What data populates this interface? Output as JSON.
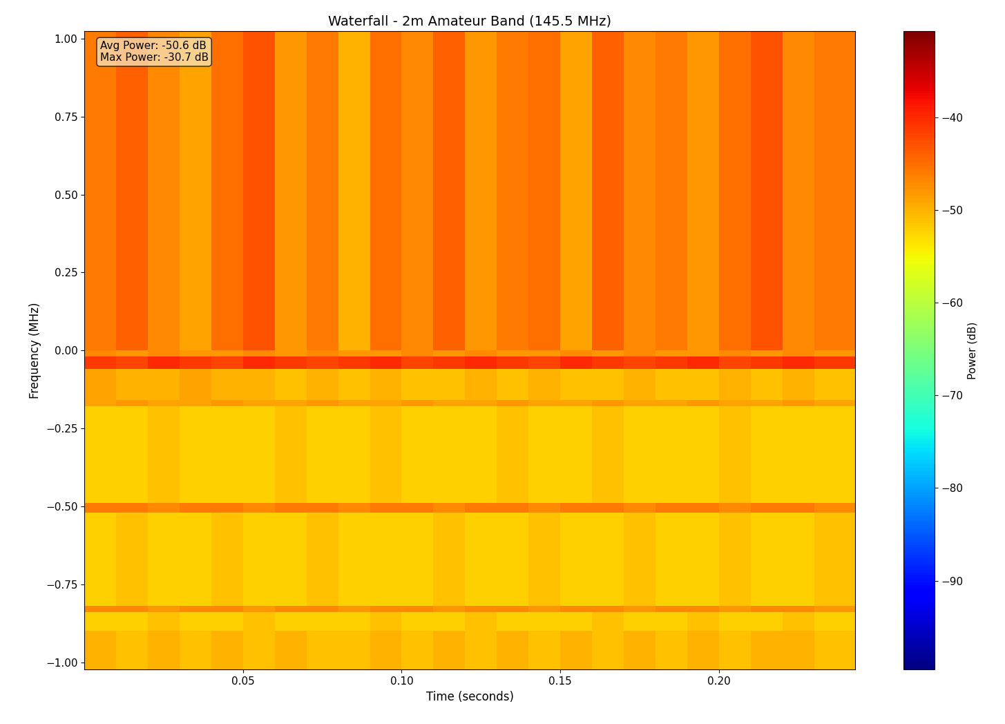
{
  "chart_data": {
    "type": "heatmap",
    "title": "Waterfall - 2m Amateur Band (145.5 MHz)",
    "x_label": "Time (seconds)",
    "y_label": "Frequency (MHz)",
    "color": "jet",
    "annotation": "Avg Power: -50.6 dB\nMax Power: -30.7 dB",
    "xlim": [
      0,
      0.243
    ],
    "xticks": [
      0.05,
      {
        "value": 0.1,
        "label": "0.10"
      },
      0.15,
      {
        "value": 0.2,
        "label": "0.20"
      }
    ],
    "ylim": [
      -1.024,
      1.024
    ],
    "yticks": [
      {
        "value": -1.0,
        "label": "−1.00"
      },
      {
        "value": -0.75,
        "label": "−0.75"
      },
      {
        "value": -0.5,
        "label": "−0.50"
      },
      {
        "value": -0.25,
        "label": "−0.25"
      },
      {
        "value": 0.0,
        "label": "0.00"
      },
      {
        "value": 0.25,
        "label": "0.25"
      },
      {
        "value": 0.5,
        "label": "0.50"
      },
      {
        "value": 0.75,
        "label": "0.75"
      },
      {
        "value": 1.0,
        "label": "1.00"
      }
    ],
    "time_edges": [
      0,
      0.01,
      0.02,
      0.03,
      0.04,
      0.05,
      0.06,
      0.07,
      0.08,
      0.09,
      0.1,
      0.11,
      0.12,
      0.13,
      0.14,
      0.15,
      0.16,
      0.17,
      0.18,
      0.19,
      0.2,
      0.21,
      0.22,
      0.23,
      0.243
    ],
    "freq_edges": [
      -1.024,
      -0.9,
      -0.84,
      -0.82,
      -0.52,
      -0.49,
      -0.18,
      -0.16,
      -0.06,
      -0.02,
      0.0,
      1.024
    ],
    "cells": [
      [
        -50,
        -51,
        -50,
        -51,
        -50,
        -51,
        -50,
        -51,
        -51,
        -50,
        -51,
        -50,
        -51,
        -50,
        -51,
        -50,
        -51,
        -50,
        -51,
        -50,
        -51,
        -50,
        -50,
        -51
      ],
      [
        -52,
        -52,
        -51,
        -52,
        -52,
        -51,
        -52,
        -52,
        -52,
        -51,
        -52,
        -52,
        -51,
        -52,
        -52,
        -52,
        -51,
        -52,
        -52,
        -51,
        -52,
        -52,
        -51,
        -52
      ],
      [
        -47,
        -47,
        -48,
        -47,
        -47,
        -48,
        -47,
        -47,
        -48,
        -47,
        -47,
        -48,
        -47,
        -47,
        -48,
        -47,
        -47,
        -48,
        -47,
        -47,
        -48,
        -47,
        -47,
        -48
      ],
      [
        -52,
        -51,
        -52,
        -52,
        -51,
        -52,
        -52,
        -51,
        -52,
        -52,
        -52,
        -51,
        -52,
        -52,
        -51,
        -52,
        -52,
        -51,
        -52,
        -52,
        -51,
        -52,
        -52,
        -51
      ],
      [
        -46,
        -46,
        -47,
        -46,
        -46,
        -47,
        -46,
        -46,
        -47,
        -46,
        -46,
        -47,
        -46,
        -46,
        -47,
        -46,
        -46,
        -47,
        -46,
        -46,
        -47,
        -46,
        -46,
        -47
      ],
      [
        -52,
        -52,
        -51,
        -52,
        -52,
        -52,
        -51,
        -52,
        -52,
        -51,
        -52,
        -52,
        -52,
        -51,
        -52,
        -52,
        -51,
        -52,
        -52,
        -52,
        -51,
        -52,
        -52,
        -52
      ],
      [
        -49,
        -48,
        -49,
        -49,
        -48,
        -49,
        -49,
        -48,
        -49,
        -49,
        -48,
        -49,
        -49,
        -48,
        -49,
        -49,
        -48,
        -49,
        -49,
        -48,
        -49,
        -49,
        -48,
        -49
      ],
      [
        -49,
        -50,
        -50,
        -49,
        -50,
        -50,
        -51,
        -50,
        -51,
        -50,
        -51,
        -51,
        -50,
        -51,
        -50,
        -51,
        -51,
        -50,
        -51,
        -51,
        -50,
        -51,
        -50,
        -51
      ],
      [
        -41,
        -42,
        -40,
        -41,
        -42,
        -40,
        -41,
        -42,
        -41,
        -40,
        -42,
        -41,
        -40,
        -41,
        -42,
        -40,
        -41,
        -42,
        -41,
        -40,
        -42,
        -41,
        -40,
        -41
      ],
      [
        -47,
        -48,
        -47,
        -48,
        -48,
        -47,
        -48,
        -47,
        -48,
        -48,
        -47,
        -48,
        -47,
        -48,
        -48,
        -47,
        -48,
        -47,
        -48,
        -48,
        -47,
        -48,
        -47,
        -48
      ],
      [
        -46,
        -44,
        -47,
        -49,
        -45,
        -43,
        -48,
        -46,
        -50,
        -45,
        -47,
        -44,
        -48,
        -46,
        -45,
        -49,
        -44,
        -47,
        -46,
        -48,
        -45,
        -43,
        -47,
        -46
      ]
    ],
    "colorbar_label": "Power (dB)",
    "colorbar_lim": [
      -99.6,
      -30.7
    ],
    "colorbar_ticks": [
      {
        "value": -90,
        "label": "−90"
      },
      {
        "value": -80,
        "label": "−80"
      },
      {
        "value": -70,
        "label": "−70"
      },
      {
        "value": -60,
        "label": "−60"
      },
      {
        "value": -50,
        "label": "−50"
      },
      {
        "value": -40,
        "label": "−40"
      }
    ]
  }
}
